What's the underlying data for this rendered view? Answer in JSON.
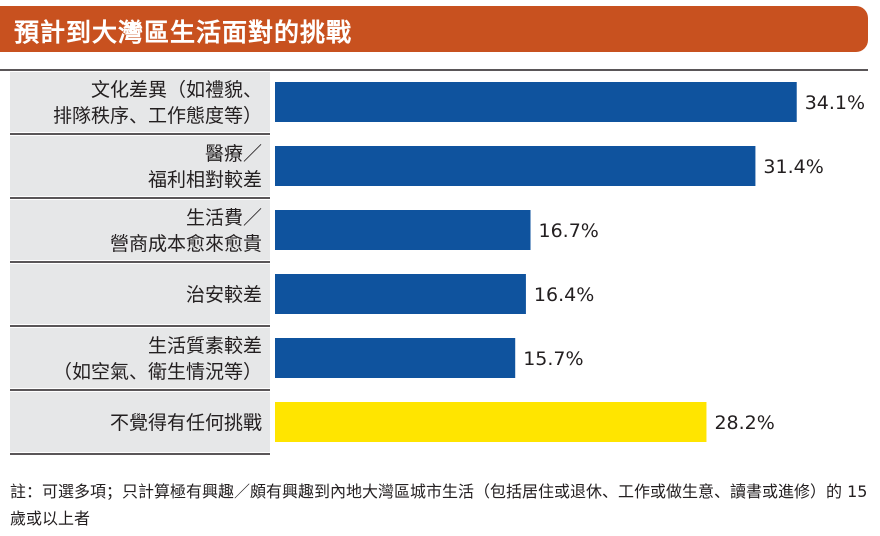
{
  "title": "預計到大灣區生活面對的挑戰",
  "colors": {
    "title_bg": "#c8511f",
    "label_bg": "#e6e7e8",
    "bar_blue": "#0f539e",
    "bar_yellow": "#ffe500"
  },
  "chart_data": {
    "type": "bar",
    "orientation": "horizontal",
    "title": "預計到大灣區生活面對的挑戰",
    "categories": [
      [
        "文化差異（如禮貌、",
        "排隊秩序、工作態度等）"
      ],
      [
        "醫療／",
        "福利相對較差"
      ],
      [
        "生活費／",
        "營商成本愈來愈貴"
      ],
      [
        "治安較差"
      ],
      [
        "生活質素較差",
        "（如空氣、衛生情況等）"
      ],
      [
        "不覺得有任何挑戰"
      ]
    ],
    "values": [
      34.1,
      31.4,
      16.7,
      16.4,
      15.7,
      28.2
    ],
    "value_labels": [
      "34.1%",
      "31.4%",
      "16.7%",
      "16.4%",
      "15.7%",
      "28.2%"
    ],
    "bar_colors": [
      "#0f539e",
      "#0f539e",
      "#0f539e",
      "#0f539e",
      "#0f539e",
      "#ffe500"
    ],
    "xlim": [
      0,
      40
    ],
    "grid": false,
    "legend": "none"
  },
  "footnote": "註：可選多項；只計算極有興趣／頗有興趣到內地大灣區城市生活（包括居住或退休、工作或做生意、讀書或進修）的 15 歲或以上者"
}
